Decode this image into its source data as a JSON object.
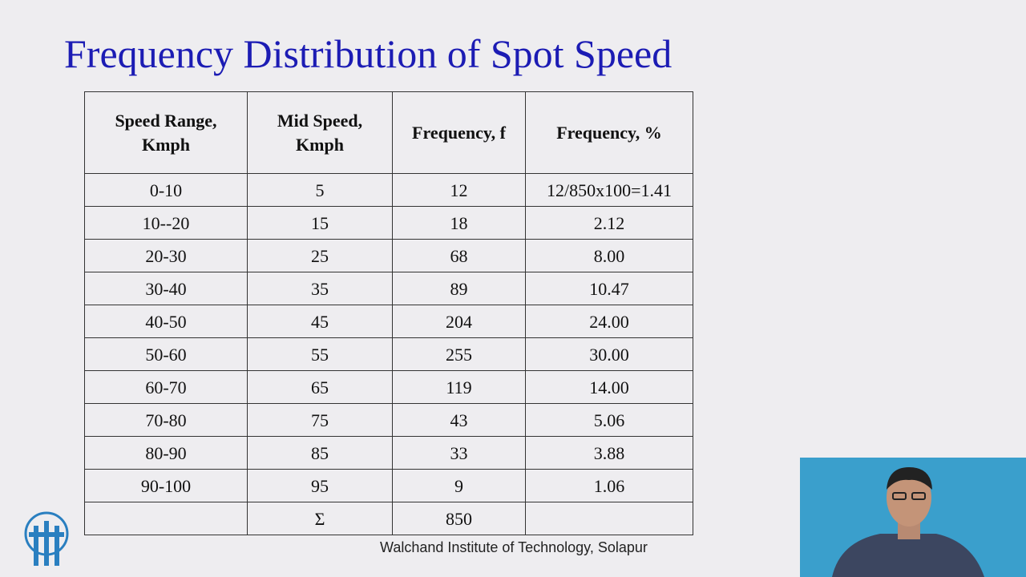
{
  "slide": {
    "title": "Frequency Distribution of Spot Speed",
    "table": {
      "header": [
        "Speed Range, Kmph",
        "Mid Speed, Kmph",
        "Frequency, f",
        "Frequency, %"
      ],
      "rows": [
        [
          "0-10",
          "5",
          "12",
          "12/850x100=1.41"
        ],
        [
          "10--20",
          "15",
          "18",
          "2.12"
        ],
        [
          "20-30",
          "25",
          "68",
          "8.00"
        ],
        [
          "30-40",
          "35",
          "89",
          "10.47"
        ],
        [
          "40-50",
          "45",
          "204",
          "24.00"
        ],
        [
          "50-60",
          "55",
          "255",
          "30.00"
        ],
        [
          "60-70",
          "65",
          "119",
          "14.00"
        ],
        [
          "70-80",
          "75",
          "43",
          "5.06"
        ],
        [
          "80-90",
          "85",
          "33",
          "3.88"
        ],
        [
          "90-100",
          "95",
          "9",
          "1.06"
        ]
      ],
      "total": {
        "symbol": "Σ",
        "value": "850"
      }
    },
    "footer": "Walchand Institute of Technology, Solapur"
  }
}
